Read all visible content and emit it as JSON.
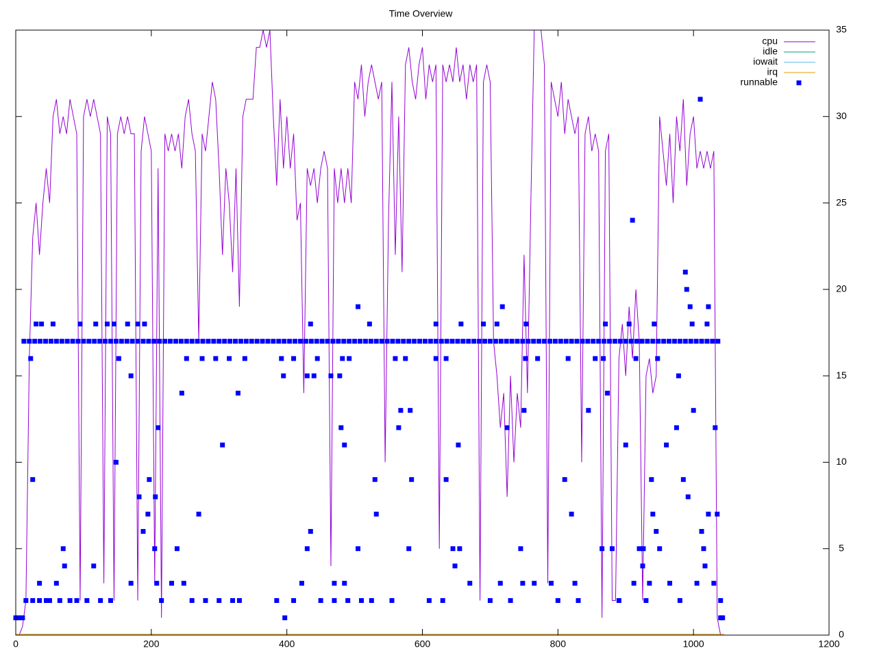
{
  "chart_data": {
    "type": "line",
    "title": "Time Overview",
    "xlim": [
      0,
      1200
    ],
    "xticks": [
      0,
      200,
      400,
      600,
      800,
      1000,
      1200
    ],
    "ylim": [
      0,
      35
    ],
    "yticks": [
      0,
      5,
      10,
      15,
      20,
      25,
      30,
      35
    ],
    "y_axis_side": "right",
    "grid": false,
    "legend": "top-right",
    "series": [
      {
        "name": "cpu",
        "color": "#9400d3",
        "style": "line",
        "x": [
          0,
          5,
          10,
          15,
          20,
          25,
          30,
          35,
          40,
          45,
          50,
          55,
          60,
          65,
          70,
          75,
          80,
          85,
          90,
          95,
          100,
          105,
          110,
          115,
          120,
          125,
          130,
          135,
          140,
          145,
          150,
          155,
          160,
          165,
          170,
          175,
          180,
          185,
          190,
          195,
          200,
          205,
          210,
          215,
          220,
          225,
          230,
          235,
          240,
          245,
          250,
          255,
          260,
          265,
          270,
          275,
          280,
          285,
          290,
          295,
          300,
          305,
          310,
          315,
          320,
          325,
          330,
          335,
          340,
          345,
          350,
          355,
          360,
          365,
          370,
          375,
          380,
          385,
          390,
          395,
          400,
          405,
          410,
          415,
          420,
          425,
          430,
          435,
          440,
          445,
          450,
          455,
          460,
          465,
          470,
          475,
          480,
          485,
          490,
          495,
          500,
          505,
          510,
          515,
          520,
          525,
          530,
          535,
          540,
          545,
          550,
          555,
          560,
          565,
          570,
          575,
          580,
          585,
          590,
          595,
          600,
          605,
          610,
          615,
          620,
          625,
          630,
          635,
          640,
          645,
          650,
          655,
          660,
          665,
          670,
          675,
          680,
          685,
          690,
          695,
          700,
          705,
          710,
          715,
          720,
          725,
          730,
          735,
          740,
          745,
          750,
          755,
          760,
          765,
          770,
          775,
          780,
          785,
          790,
          795,
          800,
          805,
          810,
          815,
          820,
          825,
          830,
          835,
          840,
          845,
          850,
          855,
          860,
          865,
          870,
          875,
          880,
          885,
          890,
          895,
          900,
          905,
          910,
          915,
          920,
          925,
          930,
          935,
          940,
          945,
          950,
          955,
          960,
          965,
          970,
          975,
          980,
          985,
          990,
          995,
          1000,
          1005,
          1010,
          1015,
          1020,
          1025,
          1030,
          1035,
          1040
        ],
        "values": [
          0,
          0,
          0.5,
          2,
          16,
          23,
          25,
          22,
          25,
          27,
          25,
          30,
          31,
          29,
          30,
          29,
          31,
          30,
          29,
          2,
          30,
          31,
          30,
          31,
          30,
          29,
          3,
          30,
          29,
          2,
          29,
          30,
          29,
          30,
          29,
          29,
          2,
          28,
          30,
          29,
          28,
          3,
          27,
          1,
          29,
          28,
          29,
          28,
          29,
          27,
          30,
          31,
          29,
          28,
          17,
          29,
          28,
          30,
          32,
          31,
          27,
          22,
          27,
          25,
          21,
          27,
          19,
          30,
          31,
          31,
          31,
          34,
          34,
          35,
          34,
          35,
          30,
          26,
          31,
          27,
          30,
          27,
          29,
          24,
          25,
          14,
          27,
          26,
          27,
          25,
          27,
          28,
          27,
          4,
          27,
          25,
          27,
          25,
          27,
          25,
          32,
          31,
          33,
          30,
          32,
          33,
          32,
          31,
          32,
          10,
          24,
          32,
          22,
          30,
          21,
          33,
          34,
          32,
          31,
          33,
          34,
          31,
          33,
          32,
          33,
          5,
          33,
          32,
          33,
          32,
          34,
          32,
          33,
          31,
          33,
          32,
          33,
          2,
          32,
          33,
          32,
          17,
          15,
          12,
          14,
          8,
          15,
          10,
          14,
          12,
          22,
          14,
          25,
          35,
          35,
          35,
          33,
          3,
          32,
          31,
          30,
          32,
          29,
          31,
          30,
          29,
          30,
          10,
          29,
          30,
          28,
          29,
          28,
          1,
          28,
          29,
          2,
          2,
          16,
          18,
          15,
          19,
          16,
          20,
          17,
          2,
          15,
          16,
          14,
          15,
          30,
          28,
          26,
          29,
          25,
          30,
          28,
          31,
          26,
          29,
          30,
          27,
          28,
          27,
          28,
          27,
          28,
          1,
          0
        ]
      },
      {
        "name": "idle",
        "color": "#009e73",
        "style": "line",
        "x": [
          0,
          1045
        ],
        "values": [
          0,
          0
        ]
      },
      {
        "name": "iowait",
        "color": "#56b4e9",
        "style": "line",
        "x": [
          0,
          1045
        ],
        "values": [
          0,
          0
        ]
      },
      {
        "name": "irq",
        "color": "#e69f00",
        "style": "line",
        "x": [
          0,
          1045
        ],
        "values": [
          0.05,
          0.05
        ]
      },
      {
        "name": "runnable",
        "color": "#0000ff",
        "style": "points",
        "x": [
          12,
          20,
          28,
          36,
          44,
          52,
          60,
          68,
          76,
          84,
          92,
          100,
          108,
          116,
          124,
          132,
          140,
          148,
          156,
          164,
          172,
          180,
          188,
          196,
          204,
          212,
          220,
          228,
          236,
          244,
          252,
          260,
          268,
          276,
          284,
          292,
          300,
          308,
          316,
          324,
          332,
          340,
          348,
          356,
          364,
          372,
          380,
          388,
          396,
          404,
          412,
          420,
          428,
          436,
          444,
          452,
          460,
          468,
          476,
          484,
          492,
          500,
          508,
          516,
          524,
          532,
          540,
          548,
          556,
          564,
          572,
          580,
          588,
          596,
          604,
          612,
          620,
          628,
          636,
          644,
          652,
          660,
          668,
          676,
          684,
          692,
          700,
          708,
          716,
          724,
          732,
          740,
          748,
          756,
          764,
          772,
          780,
          788,
          796,
          804,
          812,
          820,
          828,
          836,
          844,
          852,
          860,
          868,
          876,
          884,
          892,
          900,
          908,
          916,
          924,
          932,
          940,
          948,
          956,
          964,
          972,
          980,
          988,
          996,
          1004,
          1012,
          1020,
          1028,
          1036,
          0,
          5,
          10,
          15,
          25,
          35,
          45,
          50,
          25,
          22,
          30,
          38,
          55,
          35,
          60,
          70,
          72,
          65,
          80,
          90,
          95,
          105,
          115,
          118,
          125,
          135,
          140,
          145,
          148,
          152,
          165,
          170,
          170,
          180,
          182,
          188,
          190,
          195,
          197,
          205,
          208,
          210,
          206,
          215,
          230,
          238,
          245,
          248,
          252,
          260,
          270,
          275,
          280,
          295,
          300,
          305,
          315,
          320,
          328,
          330,
          338,
          385,
          395,
          397,
          392,
          410,
          410,
          422,
          430,
          435,
          435,
          430,
          440,
          445,
          450,
          465,
          470,
          470,
          480,
          478,
          482,
          485,
          485,
          490,
          492,
          505,
          505,
          510,
          522,
          530,
          532,
          525,
          555,
          560,
          565,
          568,
          575,
          580,
          582,
          584,
          610,
          620,
          620,
          630,
          635,
          635,
          645,
          648,
          653,
          655,
          657,
          670,
          690,
          700,
          710,
          715,
          718,
          725,
          730,
          745,
          748,
          750,
          752,
          753,
          765,
          770,
          790,
          800,
          810,
          815,
          820,
          825,
          830,
          845,
          855,
          865,
          867,
          870,
          873,
          880,
          890,
          900,
          905,
          910,
          912,
          915,
          920,
          925,
          926,
          930,
          935,
          938,
          940,
          942,
          945,
          947,
          950,
          960,
          965,
          975,
          978,
          980,
          985,
          988,
          990,
          992,
          995,
          998,
          1000,
          1005,
          1010,
          1012,
          1015,
          1017,
          1020,
          1022,
          1022,
          1030,
          1032,
          1035,
          1040,
          1040,
          1043
        ],
        "values": [
          17,
          17,
          17,
          17,
          17,
          17,
          17,
          17,
          17,
          17,
          17,
          17,
          17,
          17,
          17,
          17,
          17,
          17,
          17,
          17,
          17,
          17,
          17,
          17,
          17,
          17,
          17,
          17,
          17,
          17,
          17,
          17,
          17,
          17,
          17,
          17,
          17,
          17,
          17,
          17,
          17,
          17,
          17,
          17,
          17,
          17,
          17,
          17,
          17,
          17,
          17,
          17,
          17,
          17,
          17,
          17,
          17,
          17,
          17,
          17,
          17,
          17,
          17,
          17,
          17,
          17,
          17,
          17,
          17,
          17,
          17,
          17,
          17,
          17,
          17,
          17,
          17,
          17,
          17,
          17,
          17,
          17,
          17,
          17,
          17,
          17,
          17,
          17,
          17,
          17,
          17,
          17,
          17,
          17,
          17,
          17,
          17,
          17,
          17,
          17,
          17,
          17,
          17,
          17,
          17,
          17,
          17,
          17,
          17,
          17,
          17,
          17,
          17,
          17,
          17,
          17,
          17,
          17,
          17,
          17,
          17,
          17,
          17,
          17,
          17,
          17,
          17,
          17,
          17,
          1,
          1,
          1,
          2,
          2,
          2,
          2,
          2,
          9,
          16,
          18,
          18,
          18,
          3,
          3,
          5,
          4,
          2,
          2,
          2,
          18,
          2,
          4,
          18,
          2,
          18,
          2,
          18,
          10,
          16,
          18,
          15,
          3,
          18,
          8,
          6,
          18,
          7,
          9,
          5,
          3,
          12,
          8,
          2,
          3,
          5,
          14,
          3,
          16,
          2,
          7,
          16,
          2,
          16,
          2,
          11,
          16,
          2,
          14,
          2,
          16,
          2,
          15,
          1,
          16,
          16,
          2,
          3,
          5,
          6,
          18,
          15,
          15,
          16,
          2,
          15,
          3,
          2,
          12,
          15,
          16,
          11,
          3,
          2,
          16,
          19,
          5,
          2,
          18,
          9,
          7,
          2,
          2,
          16,
          12,
          13,
          16,
          5,
          13,
          9,
          2,
          16,
          18,
          2,
          9,
          16,
          5,
          4,
          11,
          5,
          18,
          3,
          18,
          2,
          18,
          3,
          19,
          12,
          2,
          5,
          3,
          13,
          16,
          18,
          3,
          16,
          3,
          2,
          9,
          16,
          7,
          3,
          2,
          13,
          16,
          5,
          16,
          18,
          14,
          5,
          2,
          11,
          18,
          24,
          3,
          16,
          5,
          4,
          5,
          2,
          3,
          9,
          7,
          18,
          6,
          16,
          5,
          11,
          3,
          12,
          15,
          2,
          9,
          21,
          20,
          8,
          19,
          18,
          13,
          3,
          31,
          6,
          5,
          4,
          18,
          19,
          7,
          3,
          12,
          7,
          2,
          1,
          1
        ]
      }
    ]
  }
}
